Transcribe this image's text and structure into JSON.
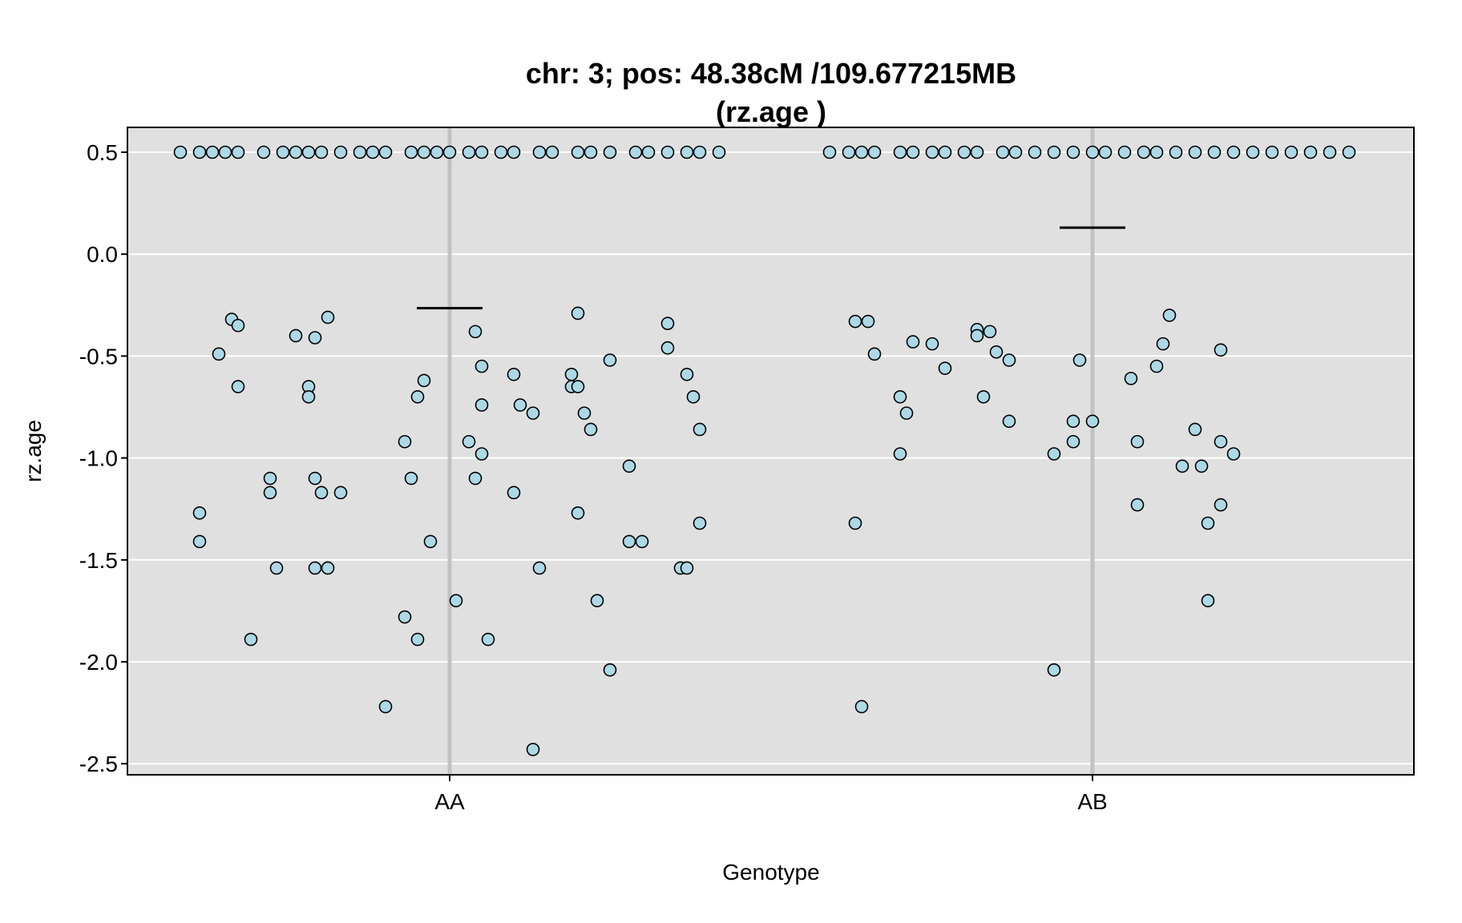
{
  "chart_data": {
    "type": "scatter",
    "title_line1": "chr: 3; pos: 48.38cM /109.677215MB",
    "title_line2": "(rz.age )",
    "xlabel": "Genotype",
    "ylabel": "rz.age",
    "categories": [
      "AA",
      "AB"
    ],
    "ylim": [
      -2.55,
      0.63
    ],
    "yticks": [
      0.5,
      0.0,
      -0.5,
      -1.0,
      -1.5,
      -2.0,
      -2.5
    ],
    "ytick_labels": [
      "0.5",
      "0.0",
      "-0.5",
      "-1.0",
      "-1.5",
      "-2.0",
      "-2.5"
    ],
    "grid": true,
    "colors": {
      "panel_bg": "#e0e0e0",
      "grid": "#ffffff",
      "category_line": "#c2c2c2",
      "point_fill": "#add8e6",
      "point_stroke": "#000000",
      "mean": "#000000"
    },
    "series": [
      {
        "category": "AA",
        "mean": -0.265,
        "points": [
          [
            -0.42,
            0.5
          ],
          [
            -0.39,
            0.5
          ],
          [
            -0.37,
            0.5
          ],
          [
            -0.35,
            0.5
          ],
          [
            -0.33,
            0.5
          ],
          [
            -0.29,
            0.5
          ],
          [
            -0.26,
            0.5
          ],
          [
            -0.24,
            0.5
          ],
          [
            -0.22,
            0.5
          ],
          [
            -0.2,
            0.5
          ],
          [
            -0.17,
            0.5
          ],
          [
            -0.14,
            0.5
          ],
          [
            -0.12,
            0.5
          ],
          [
            -0.1,
            0.5
          ],
          [
            -0.06,
            0.5
          ],
          [
            -0.04,
            0.5
          ],
          [
            -0.02,
            0.5
          ],
          [
            0.0,
            0.5
          ],
          [
            0.03,
            0.5
          ],
          [
            0.05,
            0.5
          ],
          [
            0.08,
            0.5
          ],
          [
            0.1,
            0.5
          ],
          [
            0.14,
            0.5
          ],
          [
            0.16,
            0.5
          ],
          [
            0.2,
            0.5
          ],
          [
            0.22,
            0.5
          ],
          [
            0.25,
            0.5
          ],
          [
            0.29,
            0.5
          ],
          [
            0.31,
            0.5
          ],
          [
            0.34,
            0.5
          ],
          [
            0.37,
            0.5
          ],
          [
            0.39,
            0.5
          ],
          [
            0.42,
            0.5
          ],
          [
            -0.34,
            -0.32
          ],
          [
            -0.33,
            -0.35
          ],
          [
            -0.36,
            -0.49
          ],
          [
            -0.33,
            -0.65
          ],
          [
            -0.39,
            -1.27
          ],
          [
            -0.39,
            -1.41
          ],
          [
            -0.28,
            -1.1
          ],
          [
            -0.28,
            -1.17
          ],
          [
            -0.27,
            -1.54
          ],
          [
            -0.31,
            -1.89
          ],
          [
            -0.19,
            -0.31
          ],
          [
            -0.21,
            -0.41
          ],
          [
            -0.24,
            -0.4
          ],
          [
            -0.22,
            -0.65
          ],
          [
            -0.22,
            -0.7
          ],
          [
            -0.21,
            -1.1
          ],
          [
            -0.2,
            -1.17
          ],
          [
            -0.19,
            -1.54
          ],
          [
            -0.21,
            -1.54
          ],
          [
            -0.17,
            -1.17
          ],
          [
            -0.04,
            -0.62
          ],
          [
            -0.05,
            -0.7
          ],
          [
            -0.07,
            -0.92
          ],
          [
            -0.06,
            -1.1
          ],
          [
            -0.03,
            -1.41
          ],
          [
            -0.07,
            -1.78
          ],
          [
            -0.05,
            -1.89
          ],
          [
            -0.1,
            -2.22
          ],
          [
            0.04,
            -0.38
          ],
          [
            0.05,
            -0.55
          ],
          [
            0.05,
            -0.74
          ],
          [
            0.03,
            -0.92
          ],
          [
            0.05,
            -0.98
          ],
          [
            0.04,
            -1.1
          ],
          [
            0.01,
            -1.7
          ],
          [
            0.06,
            -1.89
          ],
          [
            0.1,
            -1.17
          ],
          [
            0.1,
            -0.59
          ],
          [
            0.11,
            -0.74
          ],
          [
            0.13,
            -0.78
          ],
          [
            0.2,
            -0.29
          ],
          [
            0.19,
            -0.59
          ],
          [
            0.19,
            -0.65
          ],
          [
            0.2,
            -0.65
          ],
          [
            0.21,
            -0.78
          ],
          [
            0.22,
            -0.86
          ],
          [
            0.25,
            -0.52
          ],
          [
            0.2,
            -1.27
          ],
          [
            0.14,
            -1.54
          ],
          [
            0.23,
            -1.7
          ],
          [
            0.25,
            -2.04
          ],
          [
            0.13,
            -2.43
          ],
          [
            0.28,
            -1.04
          ],
          [
            0.28,
            -1.41
          ],
          [
            0.3,
            -1.41
          ],
          [
            0.34,
            -0.34
          ],
          [
            0.34,
            -0.46
          ],
          [
            0.37,
            -0.59
          ],
          [
            0.38,
            -0.7
          ],
          [
            0.39,
            -0.86
          ],
          [
            0.36,
            -1.54
          ],
          [
            0.37,
            -1.54
          ],
          [
            0.39,
            -1.32
          ]
        ]
      },
      {
        "category": "AB",
        "mean": 0.13,
        "points": [
          [
            -0.41,
            0.5
          ],
          [
            -0.38,
            0.5
          ],
          [
            -0.36,
            0.5
          ],
          [
            -0.34,
            0.5
          ],
          [
            -0.3,
            0.5
          ],
          [
            -0.28,
            0.5
          ],
          [
            -0.25,
            0.5
          ],
          [
            -0.23,
            0.5
          ],
          [
            -0.2,
            0.5
          ],
          [
            -0.18,
            0.5
          ],
          [
            -0.14,
            0.5
          ],
          [
            -0.12,
            0.5
          ],
          [
            -0.09,
            0.5
          ],
          [
            -0.06,
            0.5
          ],
          [
            -0.03,
            0.5
          ],
          [
            0.0,
            0.5
          ],
          [
            0.02,
            0.5
          ],
          [
            0.05,
            0.5
          ],
          [
            0.08,
            0.5
          ],
          [
            0.1,
            0.5
          ],
          [
            0.13,
            0.5
          ],
          [
            0.16,
            0.5
          ],
          [
            0.19,
            0.5
          ],
          [
            0.22,
            0.5
          ],
          [
            0.25,
            0.5
          ],
          [
            0.28,
            0.5
          ],
          [
            0.31,
            0.5
          ],
          [
            0.34,
            0.5
          ],
          [
            0.37,
            0.5
          ],
          [
            0.4,
            0.5
          ],
          [
            -0.37,
            -0.33
          ],
          [
            -0.35,
            -0.33
          ],
          [
            -0.34,
            -0.49
          ],
          [
            -0.28,
            -0.43
          ],
          [
            -0.25,
            -0.44
          ],
          [
            -0.23,
            -0.56
          ],
          [
            -0.3,
            -0.7
          ],
          [
            -0.29,
            -0.78
          ],
          [
            -0.3,
            -0.98
          ],
          [
            -0.37,
            -1.32
          ],
          [
            -0.18,
            -0.37
          ],
          [
            -0.18,
            -0.4
          ],
          [
            -0.16,
            -0.38
          ],
          [
            -0.15,
            -0.48
          ],
          [
            -0.13,
            -0.52
          ],
          [
            -0.17,
            -0.7
          ],
          [
            -0.13,
            -0.82
          ],
          [
            -0.02,
            -0.52
          ],
          [
            -0.03,
            -0.82
          ],
          [
            0.0,
            -0.82
          ],
          [
            -0.03,
            -0.92
          ],
          [
            -0.06,
            -0.98
          ],
          [
            -0.06,
            -2.04
          ],
          [
            -0.36,
            -2.22
          ],
          [
            0.06,
            -0.61
          ],
          [
            0.1,
            -0.55
          ],
          [
            0.11,
            -0.44
          ],
          [
            0.12,
            -0.3
          ],
          [
            0.07,
            -0.92
          ],
          [
            0.07,
            -1.23
          ],
          [
            0.14,
            -1.04
          ],
          [
            0.17,
            -1.04
          ],
          [
            0.16,
            -0.86
          ],
          [
            0.2,
            -0.47
          ],
          [
            0.2,
            -0.92
          ],
          [
            0.22,
            -0.98
          ],
          [
            0.18,
            -1.32
          ],
          [
            0.18,
            -1.7
          ],
          [
            0.2,
            -1.23
          ]
        ]
      }
    ]
  }
}
